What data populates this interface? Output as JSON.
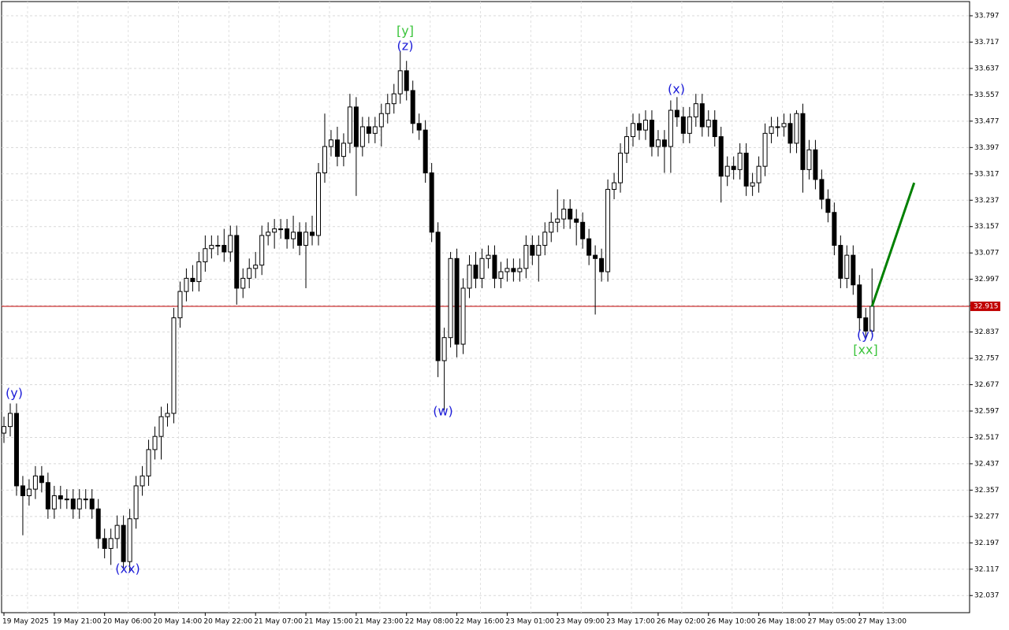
{
  "chart_data": {
    "type": "candlestick",
    "open": [
      32.53,
      32.55,
      32.59,
      32.37,
      32.34,
      32.36,
      32.4,
      32.38,
      32.3,
      32.34,
      32.33,
      32.33,
      32.3,
      32.33,
      32.33,
      32.3,
      32.21,
      32.18,
      32.21,
      32.25,
      32.14,
      32.27,
      32.37,
      32.4,
      32.48,
      32.52,
      32.58,
      32.59,
      32.88,
      32.96,
      33.0,
      32.99,
      33.05,
      33.09,
      33.1,
      33.1,
      33.08,
      33.13,
      32.97,
      33.0,
      33.03,
      33.04,
      33.13,
      33.14,
      33.15,
      33.15,
      33.12,
      33.14,
      33.1,
      33.14,
      33.13,
      33.32,
      33.4,
      33.42,
      33.37,
      33.41,
      33.52,
      33.4,
      33.46,
      33.44,
      33.46,
      33.5,
      33.53,
      33.56,
      33.63,
      33.57,
      33.47,
      33.45,
      33.32,
      33.14,
      32.75,
      32.82,
      33.06,
      32.8,
      32.97,
      33.04,
      33.0,
      33.06,
      33.07,
      33.0,
      33.02,
      33.03,
      33.02,
      33.03,
      33.1,
      33.07,
      33.1,
      33.14,
      33.17,
      33.18,
      33.21,
      33.18,
      33.17,
      33.12,
      33.07,
      33.06,
      33.02,
      33.27,
      33.29,
      33.38,
      33.43,
      33.47,
      33.45,
      33.48,
      33.4,
      33.42,
      33.4,
      33.51,
      33.49,
      33.44,
      33.49,
      33.53,
      33.46,
      33.48,
      33.43,
      33.31,
      33.34,
      33.33,
      33.38,
      33.28,
      33.29,
      33.34,
      33.44,
      33.46,
      33.46,
      33.47,
      33.41,
      33.5,
      33.33,
      33.39,
      33.3,
      33.24,
      33.2,
      33.1,
      33.0,
      33.07,
      32.98,
      32.88,
      32.84
    ],
    "high": [
      32.58,
      32.62,
      32.62,
      32.4,
      32.39,
      32.43,
      32.43,
      32.41,
      32.37,
      32.37,
      32.36,
      32.36,
      32.36,
      32.36,
      32.36,
      32.33,
      32.24,
      32.24,
      32.28,
      32.28,
      32.3,
      32.4,
      32.43,
      32.51,
      32.55,
      32.61,
      32.62,
      32.91,
      32.99,
      33.03,
      33.04,
      33.08,
      33.13,
      33.13,
      33.13,
      33.15,
      33.16,
      33.16,
      33.03,
      33.06,
      33.08,
      33.16,
      33.17,
      33.18,
      33.18,
      33.18,
      33.19,
      33.17,
      33.17,
      33.19,
      33.35,
      33.5,
      33.45,
      33.46,
      33.44,
      33.56,
      33.55,
      33.49,
      33.49,
      33.49,
      33.53,
      33.56,
      33.59,
      33.69,
      33.66,
      33.6,
      33.5,
      33.48,
      33.35,
      33.17,
      32.85,
      33.08,
      33.09,
      33.0,
      33.07,
      33.08,
      33.09,
      33.1,
      33.1,
      33.05,
      33.06,
      33.06,
      33.06,
      33.13,
      33.13,
      33.13,
      33.17,
      33.2,
      33.27,
      33.24,
      33.24,
      33.21,
      33.2,
      33.15,
      33.1,
      33.09,
      33.3,
      33.32,
      33.41,
      33.46,
      33.5,
      33.5,
      33.51,
      33.51,
      33.45,
      33.45,
      33.54,
      33.55,
      33.52,
      33.52,
      33.56,
      33.56,
      33.51,
      33.51,
      33.46,
      33.37,
      33.37,
      33.41,
      33.41,
      33.32,
      33.37,
      33.47,
      33.49,
      33.49,
      33.5,
      33.5,
      33.51,
      33.53,
      33.42,
      33.42,
      33.33,
      33.27,
      33.23,
      33.13,
      33.1,
      33.1,
      33.01,
      32.91,
      33.03
    ],
    "low": [
      32.5,
      32.52,
      32.34,
      32.22,
      32.31,
      32.33,
      32.35,
      32.27,
      32.27,
      32.3,
      32.3,
      32.27,
      32.27,
      32.3,
      32.27,
      32.18,
      32.15,
      32.13,
      32.18,
      32.12,
      32.11,
      32.24,
      32.34,
      32.37,
      32.45,
      32.45,
      32.55,
      32.56,
      32.85,
      32.93,
      32.96,
      32.96,
      33.02,
      33.06,
      33.07,
      33.05,
      33.05,
      32.92,
      32.94,
      32.97,
      33.0,
      33.01,
      33.1,
      33.09,
      33.12,
      33.09,
      33.09,
      33.07,
      32.97,
      33.1,
      33.1,
      33.29,
      33.37,
      33.34,
      33.34,
      33.38,
      33.25,
      33.37,
      33.41,
      33.41,
      33.4,
      33.47,
      33.5,
      33.53,
      33.54,
      33.44,
      33.42,
      33.29,
      33.11,
      32.7,
      32.6,
      32.79,
      32.76,
      32.77,
      32.94,
      32.97,
      32.97,
      33.03,
      32.97,
      32.97,
      32.99,
      32.99,
      32.99,
      33.0,
      33.04,
      32.99,
      33.07,
      33.11,
      33.14,
      33.15,
      33.15,
      33.1,
      33.09,
      33.04,
      32.89,
      32.99,
      32.99,
      33.24,
      33.26,
      33.35,
      33.4,
      33.42,
      33.42,
      33.37,
      33.37,
      33.32,
      33.32,
      33.46,
      33.41,
      33.41,
      33.46,
      33.43,
      33.43,
      33.4,
      33.23,
      33.28,
      33.3,
      33.3,
      33.25,
      33.25,
      33.26,
      33.31,
      33.41,
      33.43,
      33.43,
      33.38,
      33.38,
      33.26,
      33.3,
      33.27,
      33.21,
      33.17,
      33.07,
      32.97,
      32.97,
      32.95,
      32.84,
      32.82,
      32.83
    ],
    "close": [
      32.55,
      32.59,
      32.37,
      32.34,
      32.36,
      32.4,
      32.38,
      32.3,
      32.34,
      32.33,
      32.33,
      32.3,
      32.33,
      32.33,
      32.3,
      32.21,
      32.18,
      32.21,
      32.25,
      32.14,
      32.27,
      32.37,
      32.4,
      32.48,
      32.52,
      32.58,
      32.59,
      32.88,
      32.96,
      33.0,
      32.99,
      33.05,
      33.09,
      33.1,
      33.1,
      33.08,
      33.13,
      32.97,
      33.0,
      33.03,
      33.04,
      33.13,
      33.14,
      33.15,
      33.15,
      33.12,
      33.14,
      33.1,
      33.14,
      33.13,
      33.32,
      33.4,
      33.42,
      33.37,
      33.41,
      33.52,
      33.4,
      33.46,
      33.44,
      33.46,
      33.5,
      33.53,
      33.56,
      33.63,
      33.57,
      33.47,
      33.45,
      33.32,
      33.14,
      32.75,
      32.82,
      33.06,
      32.8,
      32.97,
      33.04,
      33.0,
      33.06,
      33.07,
      33.0,
      33.02,
      33.03,
      33.02,
      33.03,
      33.1,
      33.07,
      33.1,
      33.14,
      33.17,
      33.18,
      33.21,
      33.18,
      33.17,
      33.12,
      33.07,
      33.06,
      33.02,
      33.27,
      33.29,
      33.38,
      33.43,
      33.47,
      33.45,
      33.48,
      33.4,
      33.42,
      33.4,
      33.51,
      33.49,
      33.44,
      33.49,
      33.53,
      33.46,
      33.48,
      33.43,
      33.31,
      33.34,
      33.33,
      33.38,
      33.28,
      33.29,
      33.34,
      33.44,
      33.46,
      33.46,
      33.47,
      33.41,
      33.5,
      33.33,
      33.39,
      33.3,
      33.24,
      33.2,
      33.1,
      33.0,
      33.07,
      32.98,
      32.88,
      32.84,
      32.915
    ],
    "ylim": [
      31.985,
      33.84
    ],
    "yticks": [
      33.797,
      33.717,
      33.637,
      33.557,
      33.477,
      33.397,
      33.317,
      33.237,
      33.157,
      33.077,
      32.997,
      32.917,
      32.837,
      32.757,
      32.677,
      32.597,
      32.517,
      32.437,
      32.357,
      32.277,
      32.197,
      32.117,
      32.037
    ],
    "xticks": [
      {
        "value": 0,
        "label": "19 May 2025"
      },
      {
        "value": 8,
        "label": "19 May 21:00"
      },
      {
        "value": 16,
        "label": "20 May 06:00"
      },
      {
        "value": 24,
        "label": "20 May 14:00"
      },
      {
        "value": 32,
        "label": "20 May 22:00"
      },
      {
        "value": 40,
        "label": "21 May 07:00"
      },
      {
        "value": 48,
        "label": "21 May 15:00"
      },
      {
        "value": 56,
        "label": "21 May 23:00"
      },
      {
        "value": 64,
        "label": "22 May 08:00"
      },
      {
        "value": 72,
        "label": "22 May 16:00"
      },
      {
        "value": 80,
        "label": "23 May 01:00"
      },
      {
        "value": 88,
        "label": "23 May 09:00"
      },
      {
        "value": 96,
        "label": "23 May 17:00"
      },
      {
        "value": 104,
        "label": "26 May 02:00"
      },
      {
        "value": 112,
        "label": "26 May 10:00"
      },
      {
        "value": 120,
        "label": "26 May 18:00"
      },
      {
        "value": 128,
        "label": "27 May 05:00"
      },
      {
        "value": 136,
        "label": "27 May 13:00"
      }
    ],
    "grid": true,
    "current_price": {
      "value": 32.915,
      "color": "#c00000"
    },
    "projection": {
      "color": "#008000",
      "values": [
        32.915,
        33.29
      ]
    },
    "annotations": [
      {
        "text": "(y)",
        "color": "#1c1cd8"
      },
      {
        "text": "(xx)",
        "color": "#1c1cd8"
      },
      {
        "text": "[y]",
        "color": "#3cc43c"
      },
      {
        "text": "(z)",
        "color": "#1c1cd8"
      },
      {
        "text": "(w)",
        "color": "#1c1cd8"
      },
      {
        "text": "(x)",
        "color": "#1c1cd8"
      },
      {
        "text": "(y)",
        "color": "#1c1cd8"
      },
      {
        "text": "[xx]",
        "color": "#3cc43c"
      }
    ]
  }
}
